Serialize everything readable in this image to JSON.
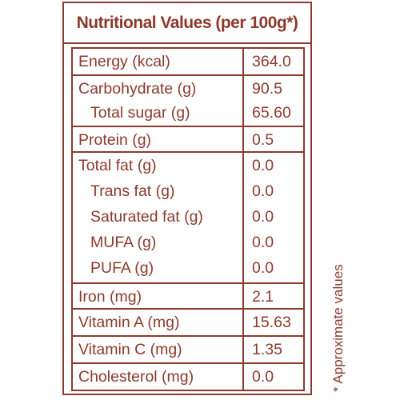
{
  "table": {
    "title": "Nutritional Values (per 100g*)",
    "groups": [
      {
        "rows": [
          {
            "label": "Energy (kcal)",
            "value": "364.0"
          }
        ]
      },
      {
        "rows": [
          {
            "label": "Carbohydrate (g)",
            "value": "90.5"
          },
          {
            "label": "Total sugar (g)",
            "value": "65.60"
          }
        ]
      },
      {
        "rows": [
          {
            "label": "Protein (g)",
            "value": "0.5"
          }
        ]
      },
      {
        "rows": [
          {
            "label": "Total fat (g)",
            "value": "0.0"
          },
          {
            "label": "Trans fat (g)",
            "value": "0.0"
          },
          {
            "label": "Saturated fat (g)",
            "value": "0.0"
          },
          {
            "label": "MUFA (g)",
            "value": "0.0"
          },
          {
            "label": "PUFA (g)",
            "value": "0.0"
          }
        ]
      },
      {
        "rows": [
          {
            "label": "Iron (mg)",
            "value": "2.1"
          }
        ]
      },
      {
        "rows": [
          {
            "label": "Vitamin A (mg)",
            "value": "15.63"
          }
        ]
      },
      {
        "rows": [
          {
            "label": "Vitamin C (mg)",
            "value": "1.35"
          }
        ]
      },
      {
        "rows": [
          {
            "label": "Cholesterol (mg)",
            "value": "0.0"
          }
        ]
      }
    ]
  },
  "footnote": "* Approximate values",
  "colors": {
    "text": "#8b3a2c",
    "border": "#8b3a2c",
    "background": "#ffffff"
  }
}
